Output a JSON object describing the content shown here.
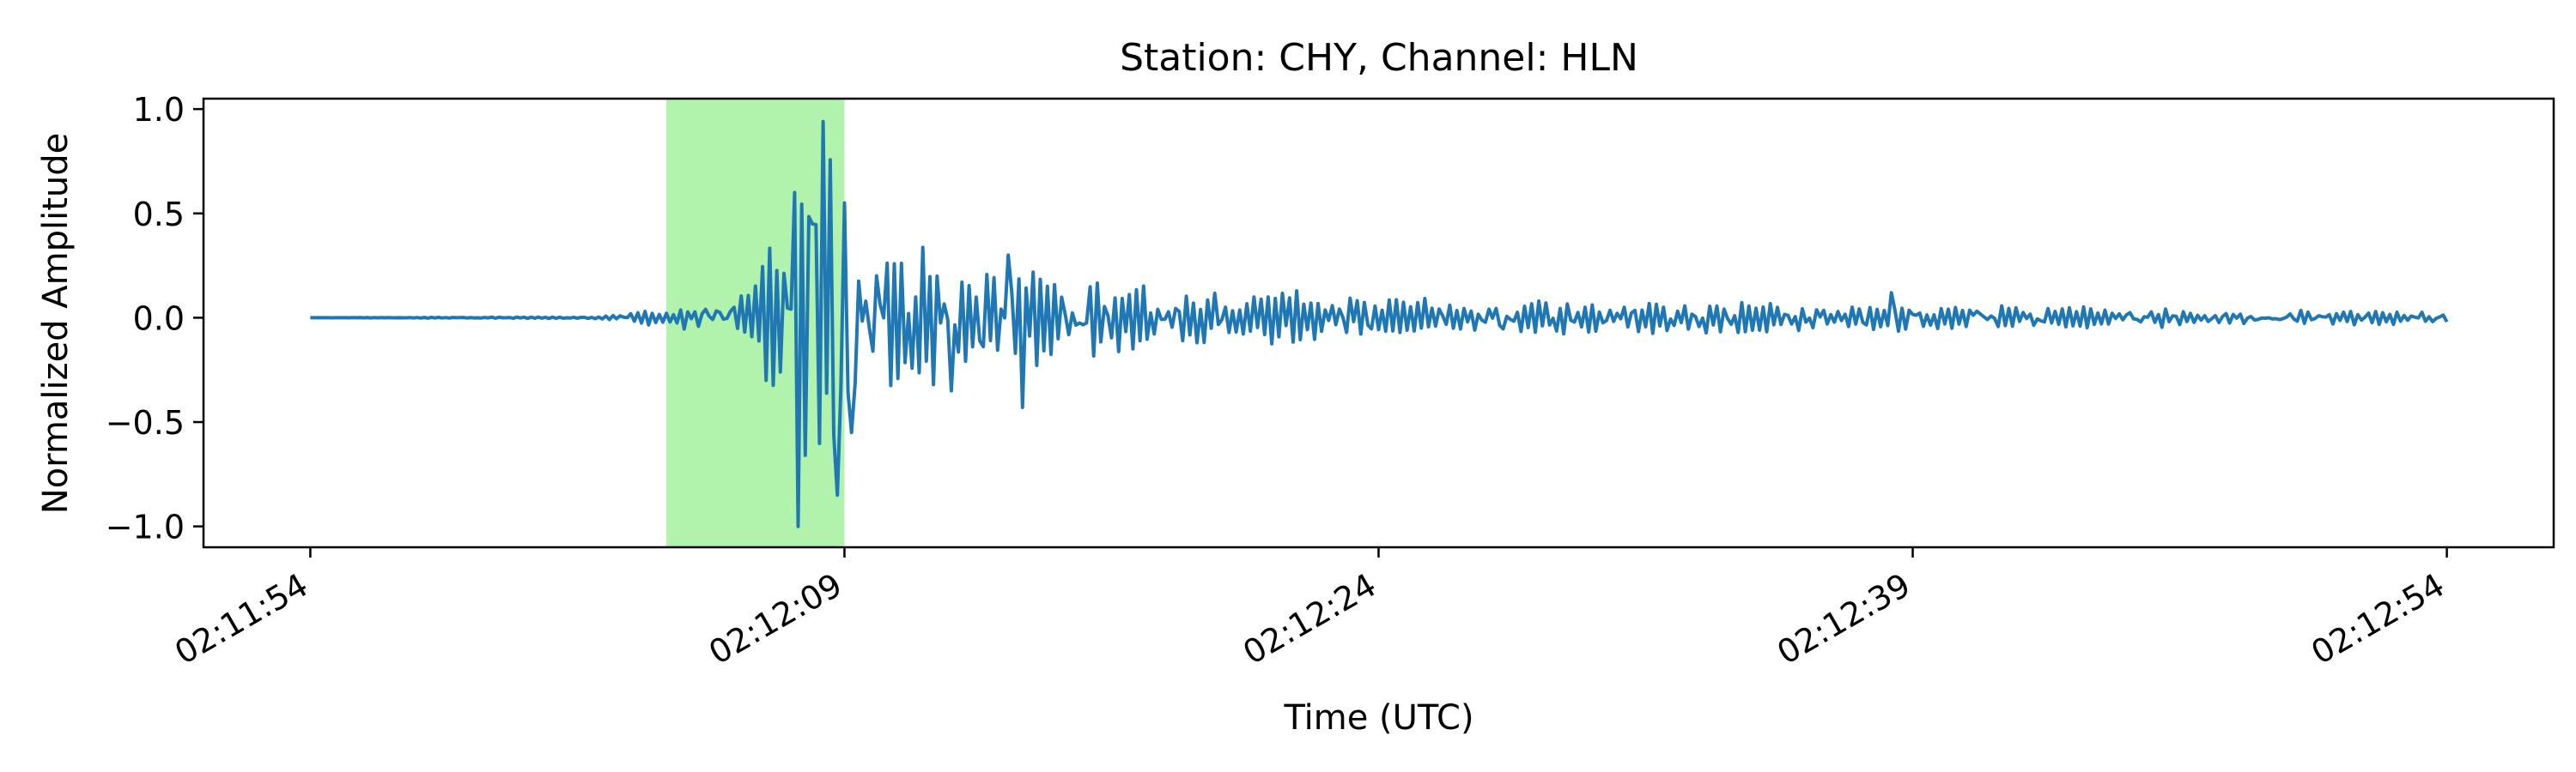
{
  "chart_data": {
    "type": "line",
    "title": "Station: CHY, Channel: HLN",
    "xlabel": "Time (UTC)",
    "ylabel": "Normalized Amplitude",
    "xlim": [
      "02:11:51",
      "02:12:57"
    ],
    "ylim": [
      -1.1,
      1.05
    ],
    "grid": false,
    "x_ticks": [
      "02:11:54",
      "02:12:09",
      "02:12:24",
      "02:12:39",
      "02:12:54"
    ],
    "y_ticks": [
      1.0,
      0.5,
      0.0,
      -0.5,
      -1.0
    ],
    "y_tick_labels": [
      "1.0",
      "0.5",
      "0.0",
      "−0.5",
      "−1.0"
    ],
    "highlight": {
      "type": "span",
      "x_start": "02:12:04",
      "x_end": "02:12:09",
      "color": "#b1f2ad"
    },
    "series": [
      {
        "color": "#1f77b4",
        "sample_interval_s": 0.1,
        "start": "02:11:54",
        "end": "02:12:54",
        "envelope": [
          {
            "t": "02:11:54",
            "amp": 0.0
          },
          {
            "t": "02:12:02",
            "amp": 0.005
          },
          {
            "t": "02:12:04",
            "amp": 0.05
          },
          {
            "t": "02:12:06",
            "amp": 0.1
          },
          {
            "t": "02:12:07",
            "amp": 0.4
          },
          {
            "t": "02:12:08.5",
            "amp": 0.9
          },
          {
            "t": "02:12:09.5",
            "amp": 0.45
          },
          {
            "t": "02:12:12",
            "amp": 0.3
          },
          {
            "t": "02:12:16",
            "amp": 0.2
          },
          {
            "t": "02:12:24",
            "amp": 0.1
          },
          {
            "t": "02:12:54",
            "amp": 0.03
          }
        ],
        "peaks": [
          {
            "t": "02:12:07.2",
            "y": -0.26
          },
          {
            "t": "02:12:07.6",
            "y": 0.6
          },
          {
            "t": "02:12:07.75",
            "y": -1.0
          },
          {
            "t": "02:12:08.1",
            "y": 0.45
          },
          {
            "t": "02:12:08.4",
            "y": 0.94
          },
          {
            "t": "02:12:08.8",
            "y": -0.85
          },
          {
            "t": "02:12:09.0",
            "y": 0.55
          },
          {
            "t": "02:12:09.2",
            "y": -0.55
          },
          {
            "t": "02:12:12.0",
            "y": -0.35
          },
          {
            "t": "02:12:13.6",
            "y": 0.3
          },
          {
            "t": "02:12:14.0",
            "y": -0.43
          },
          {
            "t": "02:12:38.4",
            "y": 0.12
          }
        ]
      }
    ]
  }
}
